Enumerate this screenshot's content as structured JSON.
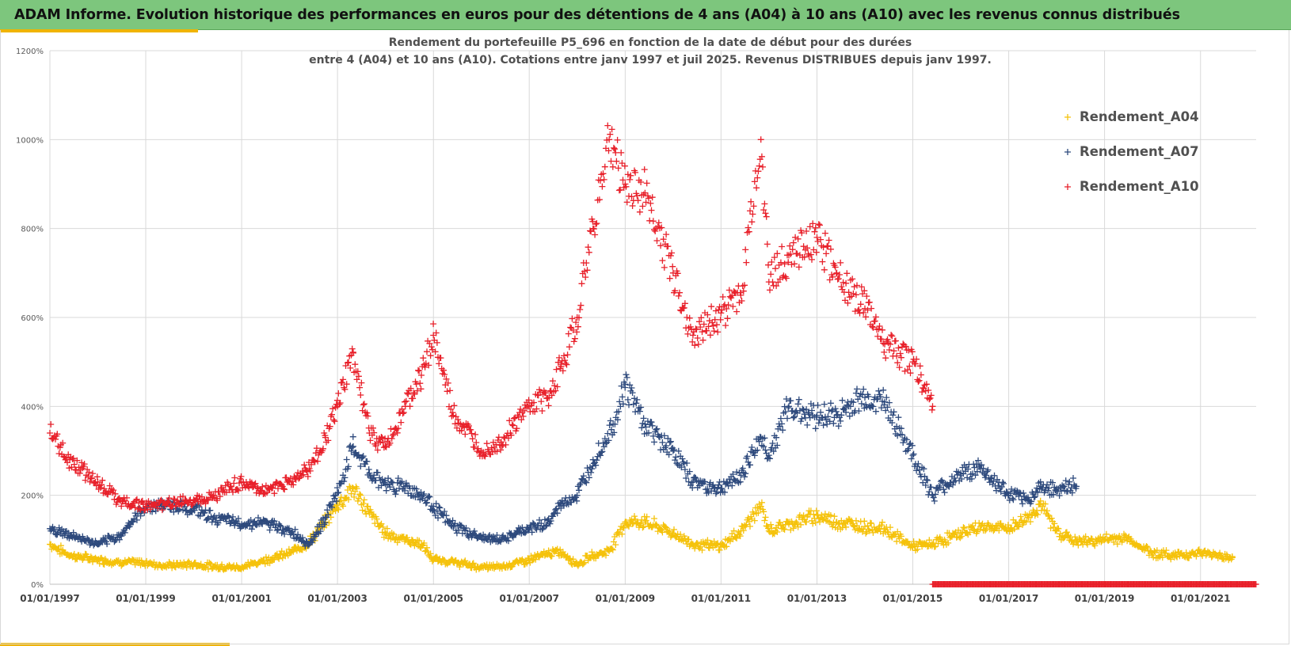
{
  "header": {
    "title": "ADAM Informe. Evolution historique des performances en euros pour des détentions de 4 ans (A04) à 10 ans (A10) avec les revenus connus distribués"
  },
  "chart_data": {
    "type": "scatter",
    "title_line1": "Rendement du portefeuille P5_696 en fonction de la date de début pour des durées",
    "title_line2": "entre 4 (A04) et 10 ans (A10). Cotations entre janv 1997 et juil 2025. Revenus DISTRIBUES depuis janv 1997.",
    "xlabel": "",
    "ylabel": "",
    "xlim": [
      "1997-01-01",
      "2022-03-01"
    ],
    "ylim": [
      0,
      1200
    ],
    "y_ticks": [
      0,
      200,
      400,
      600,
      800,
      1000,
      1200
    ],
    "y_tick_labels": [
      "0%",
      "200%",
      "400%",
      "600%",
      "800%",
      "1000%",
      "1200%"
    ],
    "x_tick_labels": [
      "01/01/1997",
      "01/01/1999",
      "01/01/2001",
      "01/01/2003",
      "01/01/2005",
      "01/01/2007",
      "01/01/2009",
      "01/01/2011",
      "01/01/2013",
      "01/01/2015",
      "01/01/2017",
      "01/01/2019",
      "01/01/2021"
    ],
    "grid": true,
    "legend": "right",
    "marker": "+",
    "series": [
      {
        "name": "Rendement_A04",
        "color": "#f5c20b",
        "x": [
          "1997-01-01",
          "1997-06-01",
          "1998-01-01",
          "1998-06-01",
          "1999-01-01",
          "1999-06-01",
          "2000-01-01",
          "2000-06-01",
          "2001-01-01",
          "2001-06-01",
          "2002-01-01",
          "2002-06-01",
          "2002-10-01",
          "2003-01-01",
          "2003-05-01",
          "2003-09-01",
          "2004-01-01",
          "2004-06-01",
          "2004-10-01",
          "2005-01-01",
          "2005-06-01",
          "2006-01-01",
          "2006-06-01",
          "2007-01-01",
          "2007-06-01",
          "2007-09-01",
          "2008-01-01",
          "2008-05-01",
          "2008-09-01",
          "2009-01-01",
          "2009-06-01",
          "2010-01-01",
          "2010-06-01",
          "2011-01-01",
          "2011-06-01",
          "2011-11-01",
          "2012-01-01",
          "2012-06-01",
          "2013-01-01",
          "2013-06-01",
          "2014-01-01",
          "2014-06-01",
          "2015-01-01",
          "2015-06-01",
          "2016-01-01",
          "2016-06-01",
          "2017-01-01",
          "2017-06-01",
          "2017-09-01",
          "2018-01-01",
          "2018-06-01",
          "2019-01-01",
          "2019-06-01",
          "2020-01-01",
          "2020-06-01",
          "2021-01-01",
          "2021-06-01",
          "2021-09-01"
        ],
        "values": [
          90,
          65,
          55,
          50,
          48,
          42,
          45,
          40,
          38,
          52,
          70,
          95,
          140,
          180,
          215,
          160,
          115,
          100,
          90,
          55,
          50,
          38,
          40,
          55,
          70,
          72,
          45,
          65,
          75,
          140,
          140,
          115,
          90,
          85,
          120,
          175,
          120,
          135,
          155,
          140,
          130,
          125,
          85,
          90,
          115,
          130,
          125,
          150,
          180,
          120,
          95,
          100,
          105,
          70,
          65,
          70,
          65,
          60
        ]
      },
      {
        "name": "Rendement_A07",
        "color": "#2e4a7d",
        "x": [
          "1997-01-01",
          "1997-06-01",
          "1998-01-01",
          "1998-06-01",
          "1999-01-01",
          "1999-06-01",
          "2000-01-01",
          "2000-06-01",
          "2001-01-01",
          "2001-06-01",
          "2002-01-01",
          "2002-06-01",
          "2002-10-01",
          "2003-01-01",
          "2003-05-01",
          "2003-09-01",
          "2004-01-01",
          "2004-06-01",
          "2004-10-01",
          "2005-01-01",
          "2005-06-01",
          "2006-01-01",
          "2006-06-01",
          "2007-01-01",
          "2007-06-01",
          "2007-09-01",
          "2008-01-01",
          "2008-05-01",
          "2008-10-01",
          "2009-01-01",
          "2009-06-01",
          "2010-01-01",
          "2010-06-01",
          "2011-01-01",
          "2011-06-01",
          "2011-11-01",
          "2012-01-01",
          "2012-06-01",
          "2013-01-01",
          "2013-06-01",
          "2014-01-01",
          "2014-06-01",
          "2015-01-01",
          "2015-06-01",
          "2016-01-01",
          "2016-06-01",
          "2017-01-01",
          "2017-06-01",
          "2017-09-01",
          "2018-01-01",
          "2018-06-01"
        ],
        "values": [
          125,
          110,
          90,
          105,
          175,
          180,
          170,
          150,
          135,
          140,
          120,
          90,
          150,
          205,
          310,
          250,
          225,
          220,
          200,
          175,
          130,
          105,
          100,
          125,
          140,
          180,
          200,
          280,
          360,
          450,
          360,
          300,
          230,
          215,
          245,
          330,
          290,
          400,
          380,
          380,
          420,
          410,
          290,
          200,
          250,
          260,
          200,
          190,
          220,
          215,
          220
        ]
      },
      {
        "name": "Rendement_A10",
        "color": "#e8202a",
        "x": [
          "1997-01-01",
          "1997-06-01",
          "1998-01-01",
          "1998-06-01",
          "1999-01-01",
          "1999-06-01",
          "2000-01-01",
          "2000-06-01",
          "2001-01-01",
          "2001-06-01",
          "2002-01-01",
          "2002-06-01",
          "2002-10-01",
          "2003-01-01",
          "2003-05-01",
          "2003-09-01",
          "2004-01-01",
          "2004-06-01",
          "2004-10-01",
          "2005-01-01",
          "2005-06-01",
          "2006-01-01",
          "2006-06-01",
          "2007-01-01",
          "2007-06-01",
          "2007-09-01",
          "2008-01-01",
          "2008-05-01",
          "2008-09-01",
          "2009-01-01",
          "2009-06-01",
          "2010-01-01",
          "2010-06-01",
          "2011-01-01",
          "2011-06-01",
          "2011-11-01",
          "2012-01-01",
          "2012-06-01",
          "2013-01-01",
          "2013-06-01",
          "2014-01-01",
          "2014-06-01",
          "2015-01-01",
          "2015-06-01"
        ],
        "values": [
          340,
          280,
          230,
          190,
          175,
          180,
          190,
          200,
          230,
          210,
          230,
          260,
          330,
          400,
          520,
          340,
          310,
          400,
          470,
          560,
          380,
          300,
          320,
          400,
          420,
          490,
          600,
          800,
          1000,
          900,
          880,
          700,
          560,
          610,
          650,
          1000,
          680,
          740,
          780,
          700,
          620,
          540,
          500,
          400
        ]
      }
    ],
    "zero_line": {
      "color": "#e8202a",
      "x_start": "2015-06-01",
      "x_end": "2022-03-01",
      "value": 0
    }
  }
}
